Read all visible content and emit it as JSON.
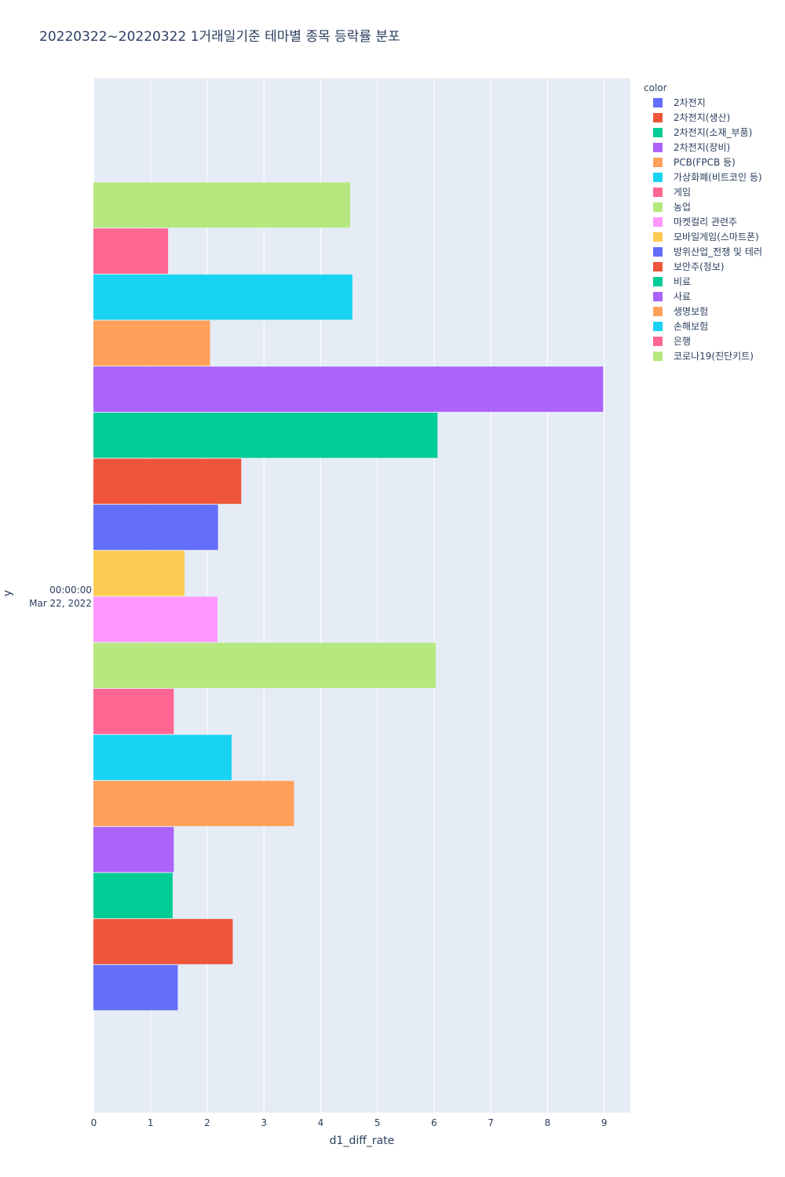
{
  "chart_data": {
    "type": "bar",
    "orientation": "horizontal",
    "title": "20220322~20220322 1거래일기준 테마별 종목 등락률 분포",
    "xlabel": "d1_diff_rate",
    "ylabel": "y",
    "xlim": [
      0,
      9.45
    ],
    "x_ticks": [
      0,
      1,
      2,
      3,
      4,
      5,
      6,
      7,
      8,
      9
    ],
    "y_tick_label": [
      "00:00:00",
      "Mar 22, 2022"
    ],
    "grid": true,
    "legend_title": "color",
    "legend_position": "right",
    "series": [
      {
        "name": "2차전지",
        "color": "#636efa",
        "value": 1.48
      },
      {
        "name": "2차전지(생산)",
        "color": "#EF553B",
        "value": 2.45
      },
      {
        "name": "2차전지(소재_부품)",
        "color": "#00cc96",
        "value": 1.39
      },
      {
        "name": "2차전지(장비)",
        "color": "#ab63fa",
        "value": 1.41
      },
      {
        "name": "PCB(FPCB 등)",
        "color": "#FFA15A",
        "value": 3.53
      },
      {
        "name": "가상화폐(비트코인 등)",
        "color": "#19d3f3",
        "value": 2.43
      },
      {
        "name": "게임",
        "color": "#FF6692",
        "value": 1.41
      },
      {
        "name": "농업",
        "color": "#B6E880",
        "value": 6.03
      },
      {
        "name": "마켓컬리 관련주",
        "color": "#FF97FF",
        "value": 2.18
      },
      {
        "name": "모바일게임(스마트폰)",
        "color": "#FECB52",
        "value": 1.6
      },
      {
        "name": "방위산업_전쟁 및 테러",
        "color": "#636efa",
        "value": 2.19
      },
      {
        "name": "보안주(정보)",
        "color": "#EF553B",
        "value": 2.6
      },
      {
        "name": "비료",
        "color": "#00cc96",
        "value": 6.06
      },
      {
        "name": "사료",
        "color": "#ab63fa",
        "value": 8.98
      },
      {
        "name": "생명보험",
        "color": "#FFA15A",
        "value": 2.05
      },
      {
        "name": "손해보험",
        "color": "#19d3f3",
        "value": 4.56
      },
      {
        "name": "은행",
        "color": "#FF6692",
        "value": 1.31
      },
      {
        "name": "코로나19(진단키트)",
        "color": "#B6E880",
        "value": 4.52
      }
    ]
  }
}
